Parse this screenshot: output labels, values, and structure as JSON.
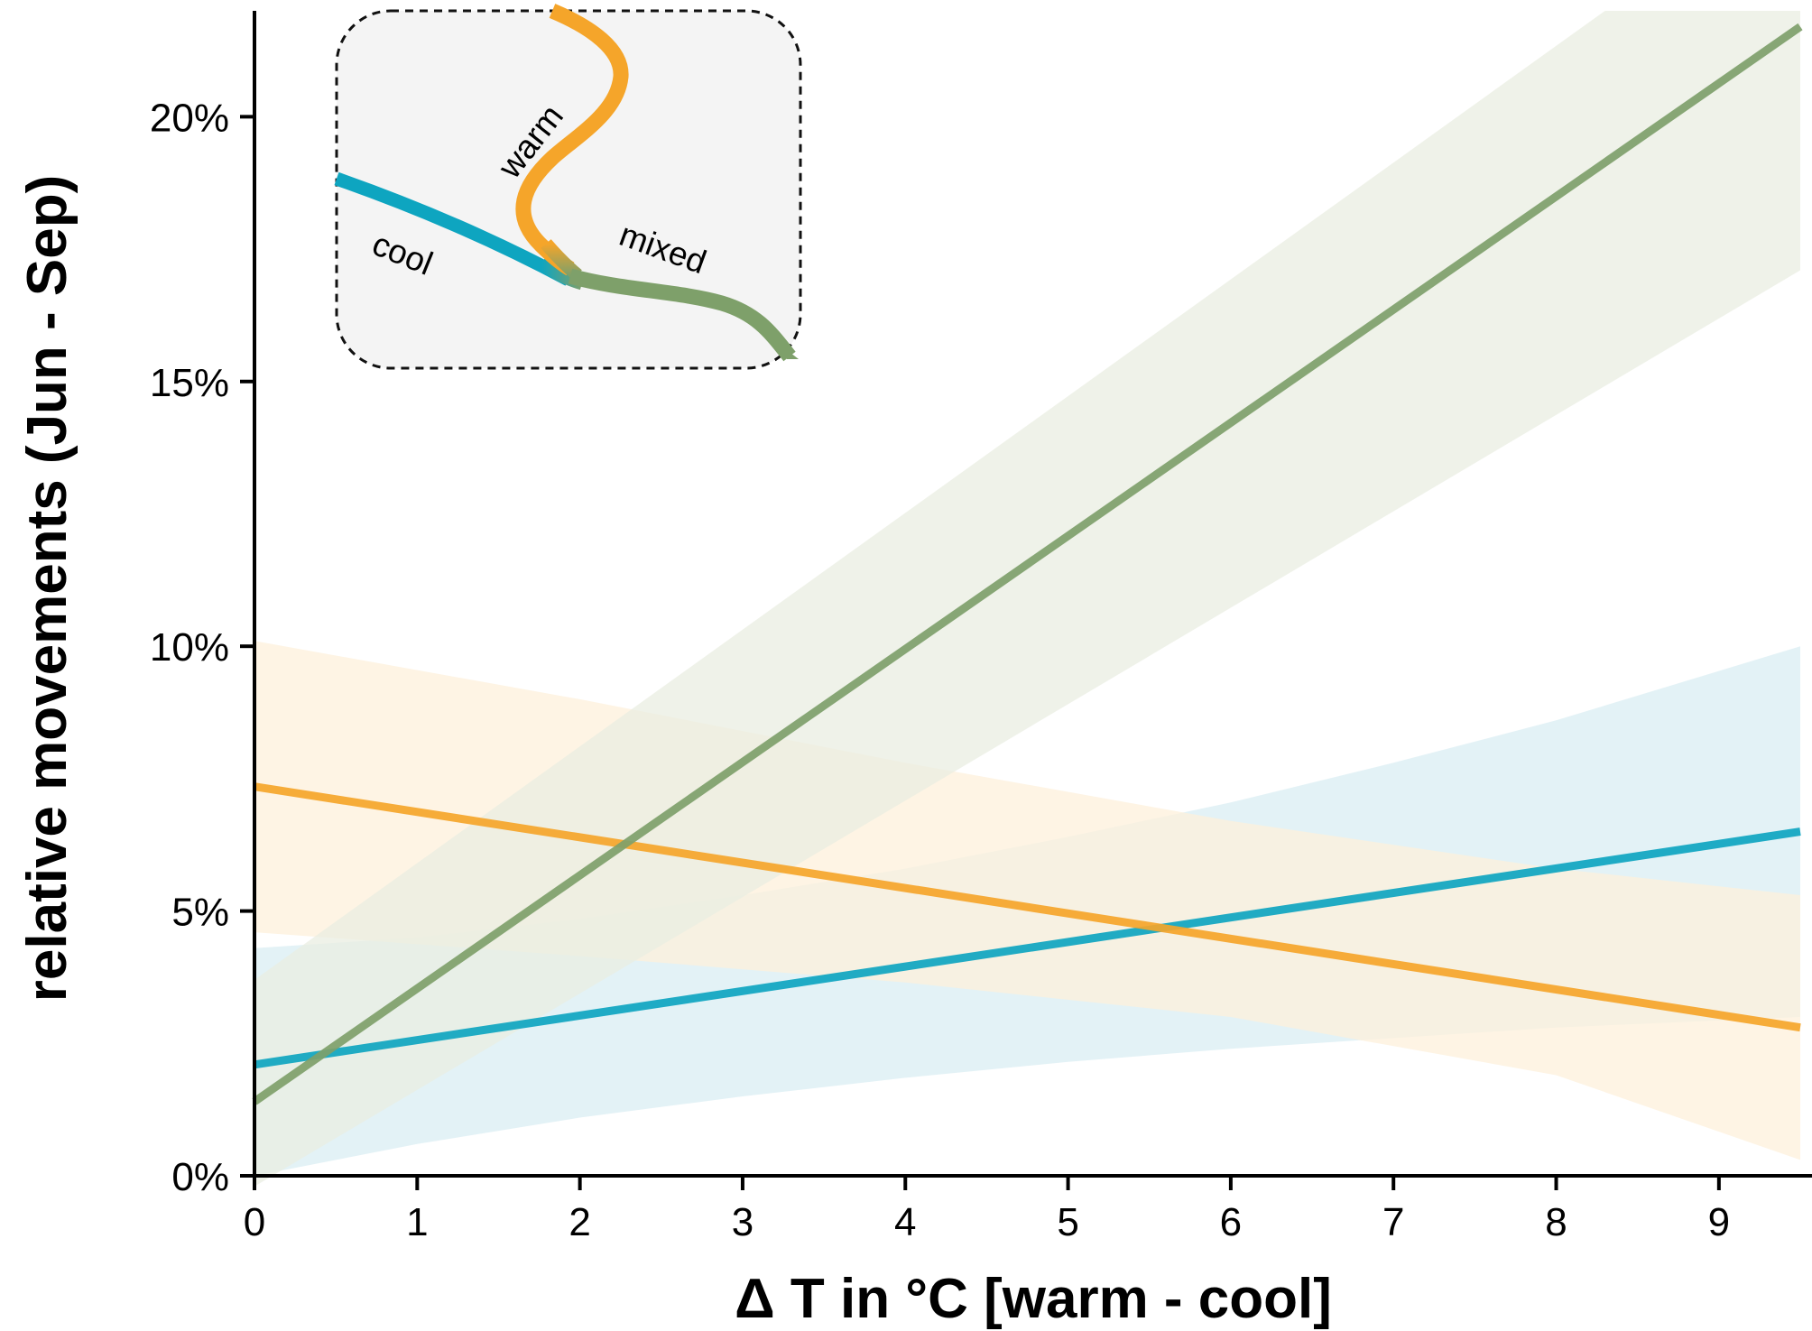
{
  "chart_data": {
    "type": "line",
    "xlabel": "Δ T in °C [warm - cool]",
    "ylabel": "relative movements (Jun - Sep)",
    "xlim": [
      0,
      9.5
    ],
    "ylim": [
      0,
      22
    ],
    "x_ticks": [
      0,
      1,
      2,
      3,
      4,
      5,
      6,
      7,
      8,
      9
    ],
    "x_tick_labels": [
      "0",
      "1",
      "2",
      "3",
      "4",
      "5",
      "6",
      "7",
      "8",
      "9"
    ],
    "y_ticks": [
      0,
      5,
      10,
      15,
      20
    ],
    "y_tick_labels": [
      "0%",
      "5%",
      "10%",
      "15%",
      "20%"
    ],
    "grid": false,
    "series": [
      {
        "name": "cool",
        "color": "#0ea5c0",
        "band_color": "#d9eef3",
        "x": [
          0,
          9.5
        ],
        "y": [
          2.1,
          6.5
        ],
        "lower": [
          {
            "x": 0,
            "y": 0
          },
          {
            "x": 1,
            "y": 0.6
          },
          {
            "x": 2,
            "y": 1.1
          },
          {
            "x": 3,
            "y": 1.5
          },
          {
            "x": 4,
            "y": 1.85
          },
          {
            "x": 5,
            "y": 2.15
          },
          {
            "x": 6,
            "y": 2.4
          },
          {
            "x": 7,
            "y": 2.6
          },
          {
            "x": 8,
            "y": 2.8
          },
          {
            "x": 9.5,
            "y": 3.0
          }
        ],
        "upper": [
          {
            "x": 0,
            "y": 4.3
          },
          {
            "x": 1,
            "y": 4.5
          },
          {
            "x": 2,
            "y": 4.85
          },
          {
            "x": 3,
            "y": 5.3
          },
          {
            "x": 4,
            "y": 5.8
          },
          {
            "x": 5,
            "y": 6.4
          },
          {
            "x": 6,
            "y": 7.05
          },
          {
            "x": 7,
            "y": 7.8
          },
          {
            "x": 8,
            "y": 8.6
          },
          {
            "x": 9.5,
            "y": 10.0
          }
        ]
      },
      {
        "name": "warm",
        "color": "#f5a52a",
        "band_color": "#fdf0db",
        "x": [
          0,
          9.5
        ],
        "y": [
          7.35,
          2.8
        ],
        "lower": [
          {
            "x": 0,
            "y": 4.6
          },
          {
            "x": 2,
            "y": 4.15
          },
          {
            "x": 4,
            "y": 3.65
          },
          {
            "x": 6,
            "y": 3.0
          },
          {
            "x": 8,
            "y": 1.9
          },
          {
            "x": 9.5,
            "y": 0.3
          }
        ],
        "upper": [
          {
            "x": 0,
            "y": 10.1
          },
          {
            "x": 2,
            "y": 9.0
          },
          {
            "x": 4,
            "y": 7.8
          },
          {
            "x": 6,
            "y": 6.7
          },
          {
            "x": 8,
            "y": 5.8
          },
          {
            "x": 9.5,
            "y": 5.3
          }
        ]
      },
      {
        "name": "mixed",
        "color": "#7ea06a",
        "band_color": "#e9eee2",
        "x": [
          0,
          9.5
        ],
        "y": [
          1.4,
          21.7
        ],
        "lower": [
          {
            "x": 0,
            "y": -0.2
          },
          {
            "x": 9.5,
            "y": 17.1
          }
        ],
        "upper": [
          {
            "x": 0,
            "y": 3.7
          },
          {
            "x": 8.3,
            "y": 22.0
          },
          {
            "x": 9.5,
            "y": 22.0
          }
        ]
      }
    ],
    "inset": {
      "labels": {
        "warm": "warm",
        "cool": "cool",
        "mixed": "mixed"
      },
      "background": "#f4f4f4"
    }
  }
}
